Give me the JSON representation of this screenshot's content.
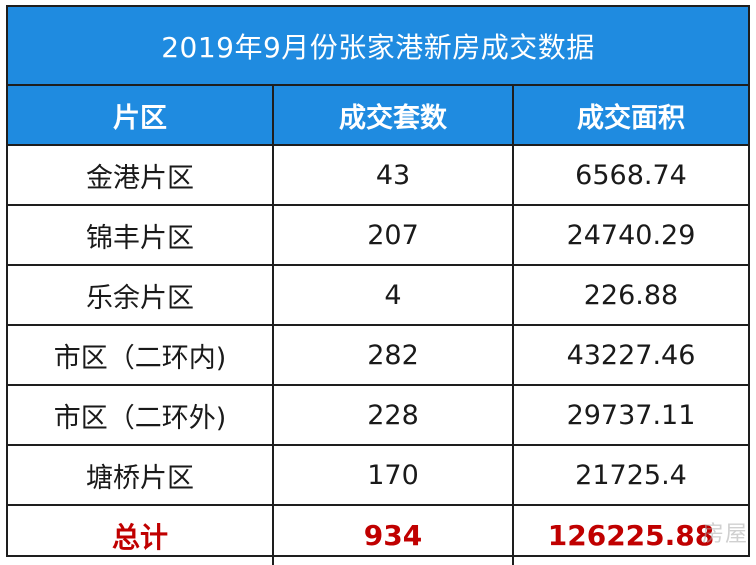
{
  "title": "2019年9月份张家港新房成交数据",
  "headers": [
    "片区",
    "成交套数",
    "成交面积"
  ],
  "rows": [
    {
      "district": "金港片区",
      "units": "43",
      "area": "6568.74"
    },
    {
      "district": "锦丰片区",
      "units": "207",
      "area": "24740.29"
    },
    {
      "district": "乐余片区",
      "units": "4",
      "area": "226.88"
    },
    {
      "district": "市区（二环内)",
      "units": "282",
      "area": "43227.46"
    },
    {
      "district": "市区（二环外)",
      "units": "228",
      "area": "29737.11"
    },
    {
      "district": "塘桥片区",
      "units": "170",
      "area": "21725.4"
    }
  ],
  "total": {
    "label": "总计",
    "units": "934",
    "area": "126225.88"
  },
  "watermark": "房屋",
  "colors": {
    "header_bg": "#1f8be0",
    "header_text": "#ffffff",
    "total_text": "#c00000",
    "border": "#1e1e1e"
  }
}
